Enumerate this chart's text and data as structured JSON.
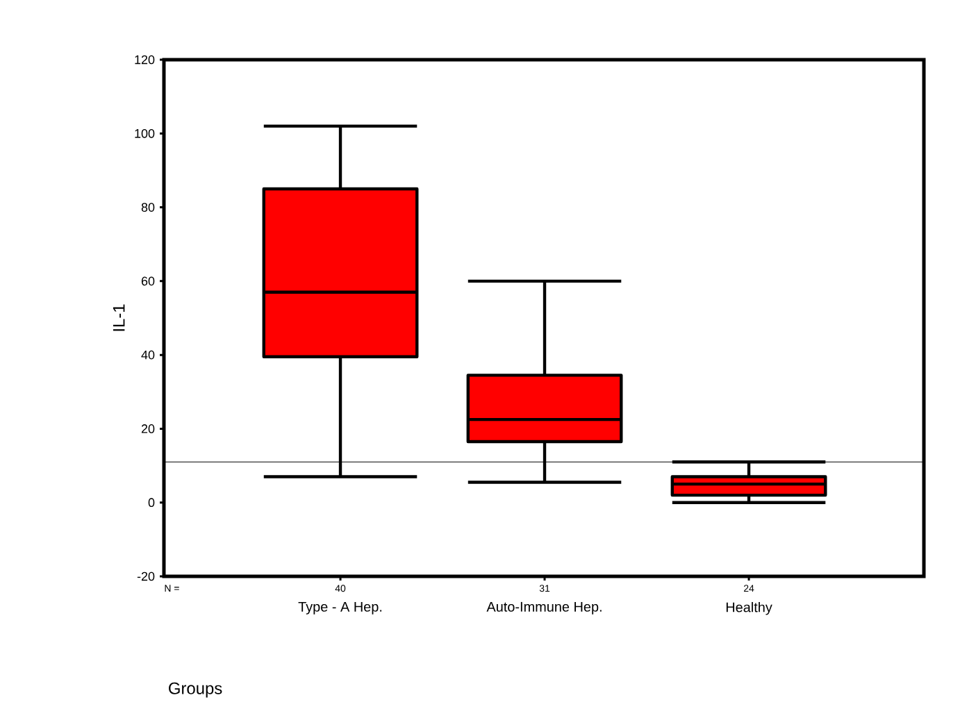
{
  "chart_data": {
    "type": "box",
    "ylabel": "IL-1",
    "xlabel": "Groups",
    "categories": [
      "Type - A Hep.",
      "Auto-Immune Hep.",
      "Healthy"
    ],
    "boxes": [
      {
        "low": 7,
        "q1": 39.5,
        "median": 57,
        "q3": 85,
        "high": 102
      },
      {
        "low": 5.5,
        "q1": 16.5,
        "median": 22.5,
        "q3": 34.5,
        "high": 60
      },
      {
        "low": 0,
        "q1": 2,
        "median": 5,
        "q3": 7,
        "high": 11
      }
    ],
    "color": "#ff0000",
    "ylim": [
      -20,
      120
    ],
    "yticks": [
      -20,
      0,
      20,
      40,
      60,
      80,
      100,
      120
    ],
    "ref_lines": [
      {
        "axis": "y",
        "value": 11
      }
    ],
    "annotations": [
      "N =",
      "40",
      "31",
      "24"
    ]
  }
}
